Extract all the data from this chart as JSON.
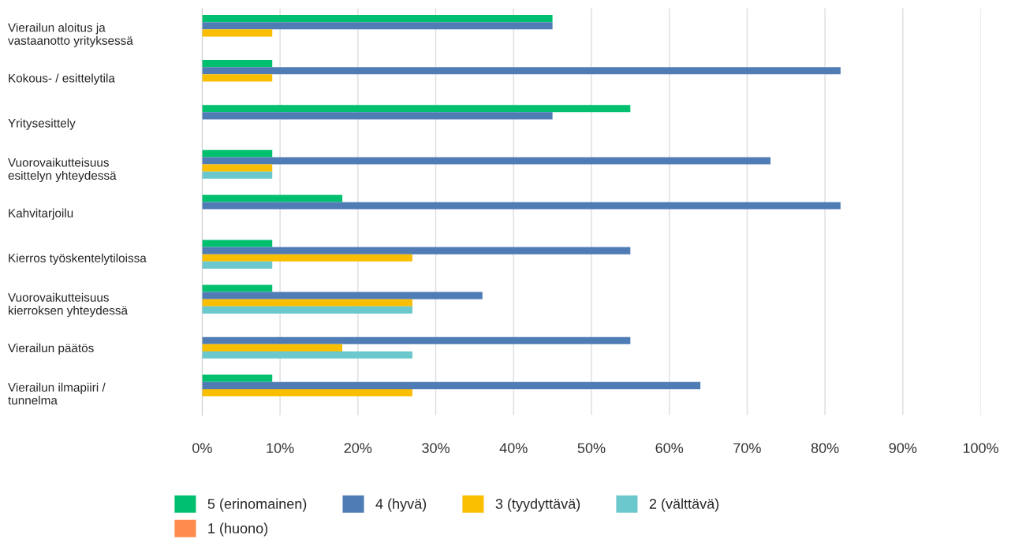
{
  "chart_data": {
    "type": "bar",
    "orientation": "horizontal",
    "categories": [
      "Vierailun aloitus ja\nvastaanotto yrityksessä",
      "Kokous- / esittelytila",
      "Yritysesittely",
      "Vuorovaikutteisuus\nesittelyn yhteydessä",
      "Kahvitarjoilu",
      "Kierros työskentelytiloissa",
      "Vuorovaikutteisuus\nkierroksen yhteydessä",
      "Vierailun päätös",
      "Vierailun ilmapiiri /\ntunnelma"
    ],
    "series": [
      {
        "name": "5 (erinomainen)",
        "color": "#00bf6f",
        "values": [
          45,
          9,
          55,
          9,
          18,
          9,
          9,
          0,
          9
        ]
      },
      {
        "name": "4 (hyvä)",
        "color": "#507cb6",
        "values": [
          45,
          82,
          45,
          73,
          82,
          55,
          36,
          55,
          64
        ]
      },
      {
        "name": "3 (tyydyttävä)",
        "color": "#f9be00",
        "values": [
          9,
          9,
          0,
          9,
          0,
          27,
          27,
          18,
          27
        ]
      },
      {
        "name": "2 (välttävä)",
        "color": "#6bc8cd",
        "values": [
          0,
          0,
          0,
          9,
          0,
          9,
          27,
          27,
          0
        ]
      },
      {
        "name": "1 (huono)",
        "color": "#ff8b4f",
        "values": [
          0,
          0,
          0,
          0,
          0,
          0,
          0,
          0,
          0
        ]
      }
    ],
    "xlim": [
      0,
      100
    ],
    "xticks": [
      {
        "value": 0,
        "label": "0%"
      },
      {
        "value": 10,
        "label": "10%"
      },
      {
        "value": 20,
        "label": "20%"
      },
      {
        "value": 30,
        "label": "30%"
      },
      {
        "value": 40,
        "label": "40%"
      },
      {
        "value": 50,
        "label": "50%"
      },
      {
        "value": 60,
        "label": "60%"
      },
      {
        "value": 70,
        "label": "70%"
      },
      {
        "value": 80,
        "label": "80%"
      },
      {
        "value": 90,
        "label": "90%"
      },
      {
        "value": 100,
        "label": "100%"
      }
    ],
    "grid": "x",
    "legend": "bottom"
  }
}
